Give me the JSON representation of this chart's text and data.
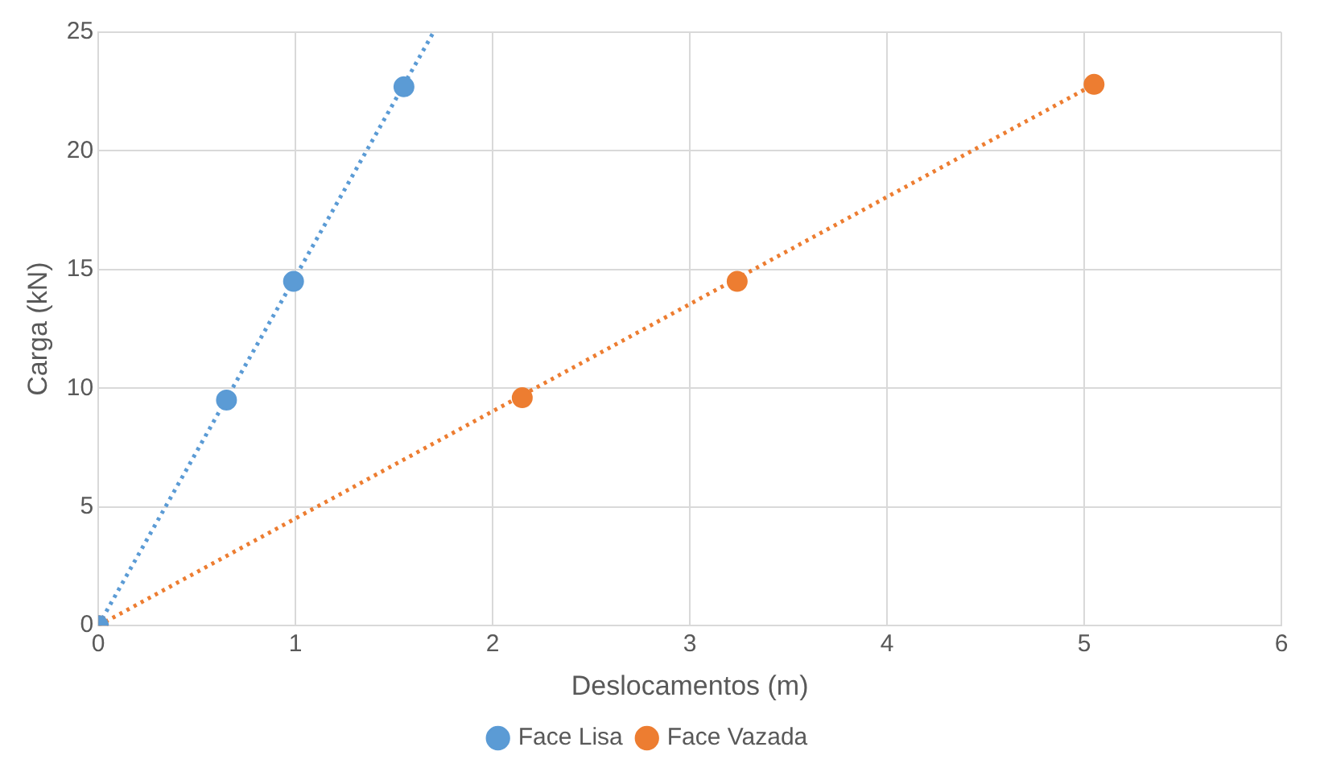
{
  "chart_data": {
    "type": "scatter",
    "xlabel": "Deslocamentos (m)",
    "ylabel": "Carga (kN)",
    "xlim": [
      0,
      6
    ],
    "xticks": [
      0,
      1,
      2,
      3,
      4,
      5,
      6
    ],
    "ylim": [
      0,
      25
    ],
    "yticks": [
      0,
      5,
      10,
      15,
      20,
      25
    ],
    "grid": true,
    "legend": "bottom",
    "marker": "circle",
    "series": [
      {
        "name": "Face Lisa",
        "color": "#5b9bd5",
        "x": [
          0,
          0.65,
          0.99,
          1.55
        ],
        "values": [
          0,
          9.5,
          14.5,
          22.7
        ]
      },
      {
        "name": "Face Vazada",
        "color": "#ed7d31",
        "x": [
          0,
          2.15,
          3.24,
          5.05
        ],
        "values": [
          0,
          9.6,
          14.5,
          22.8
        ]
      },
      {
        "type": "line",
        "color": "#5b9bd5",
        "x": [
          0,
          1.7
        ],
        "values": [
          0,
          25
        ],
        "line_style": "dotted",
        "marker": "none"
      },
      {
        "type": "line",
        "color": "#ed7d31",
        "x": [
          0,
          5.05
        ],
        "values": [
          0,
          22.8
        ],
        "line_style": "dotted",
        "marker": "none"
      }
    ]
  }
}
